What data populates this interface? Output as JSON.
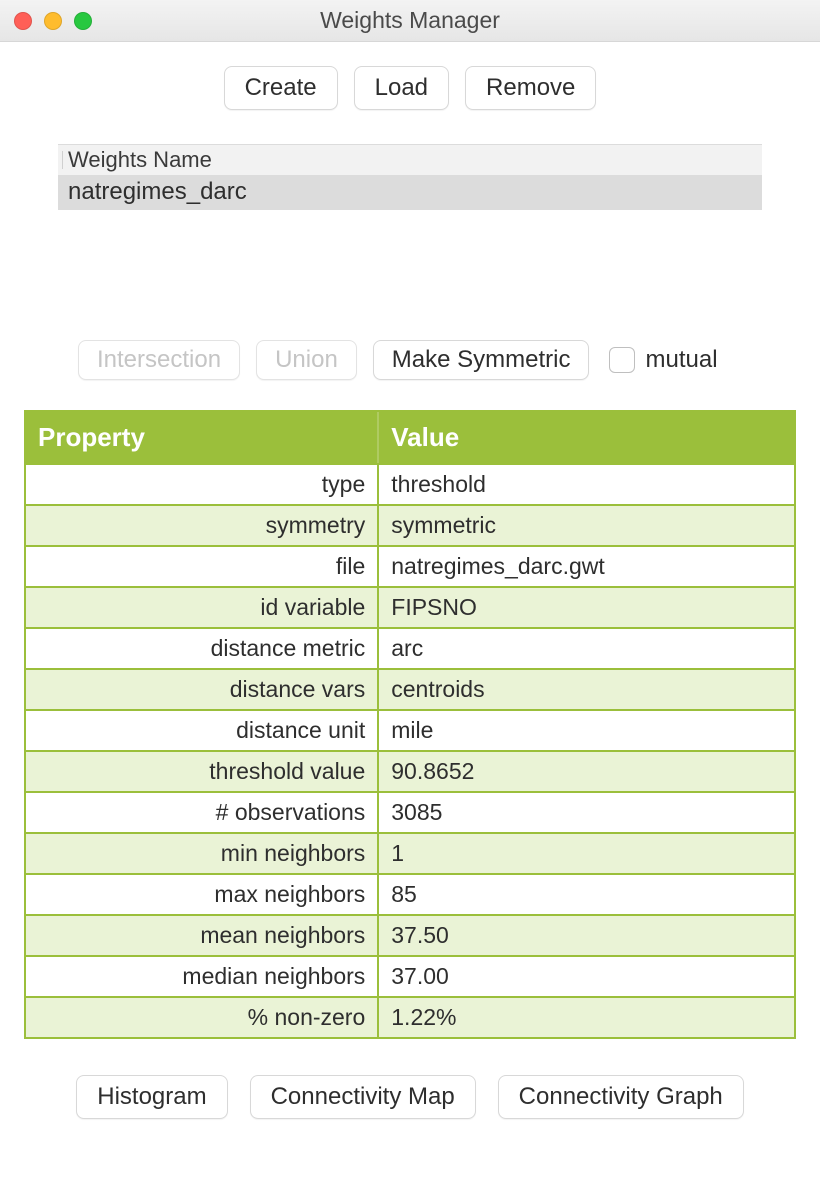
{
  "window": {
    "title": "Weights Manager"
  },
  "toolbar": {
    "create_label": "Create",
    "load_label": "Load",
    "remove_label": "Remove"
  },
  "weights_list": {
    "header_label": "Weights Name",
    "rows": [
      "natregimes_darc"
    ]
  },
  "ops": {
    "intersection_label": "Intersection",
    "union_label": "Union",
    "make_symmetric_label": "Make Symmetric",
    "mutual_label": "mutual",
    "mutual_checked": false,
    "intersection_enabled": false,
    "union_enabled": false
  },
  "property_table": {
    "header_property": "Property",
    "header_value": "Value",
    "header_bg": "#9bbf3b",
    "header_fg": "#ffffff",
    "border_color": "#9bbf3b",
    "row_bg_even": "#ffffff",
    "row_bg_odd": "#eaf3d6",
    "rows": [
      {
        "property": "type",
        "value": "threshold"
      },
      {
        "property": "symmetry",
        "value": "symmetric"
      },
      {
        "property": "file",
        "value": "natregimes_darc.gwt"
      },
      {
        "property": "id variable",
        "value": "FIPSNO"
      },
      {
        "property": "distance metric",
        "value": "arc"
      },
      {
        "property": "distance vars",
        "value": "centroids"
      },
      {
        "property": "distance unit",
        "value": "mile"
      },
      {
        "property": "threshold value",
        "value": "90.8652"
      },
      {
        "property": "# observations",
        "value": "3085"
      },
      {
        "property": "min neighbors",
        "value": "1"
      },
      {
        "property": "max neighbors",
        "value": "85"
      },
      {
        "property": "mean neighbors",
        "value": "37.50"
      },
      {
        "property": "median neighbors",
        "value": "37.00"
      },
      {
        "property": "% non-zero",
        "value": "1.22%"
      }
    ]
  },
  "bottom": {
    "histogram_label": "Histogram",
    "connectivity_map_label": "Connectivity Map",
    "connectivity_graph_label": "Connectivity Graph"
  }
}
